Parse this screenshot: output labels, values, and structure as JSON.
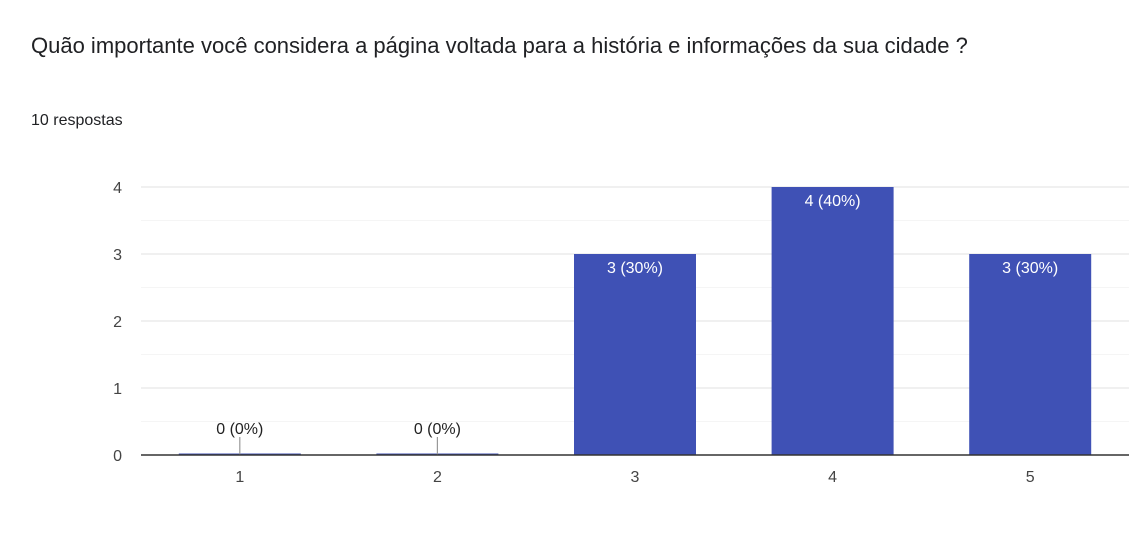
{
  "question": {
    "title": "Quão importante você considera a página voltada para a história e informações da sua cidade ?",
    "responses": "10 respostas"
  },
  "colors": {
    "bar": "#3f51b5",
    "axis": "#333333",
    "grid": "#ebebeb",
    "minor_grid": "#f5f5f5",
    "label_inside": "#ffffff",
    "label_outside": "#222222"
  },
  "chart_data": {
    "type": "bar",
    "categories": [
      "1",
      "2",
      "3",
      "4",
      "5"
    ],
    "values": [
      0,
      0,
      3,
      4,
      3
    ],
    "data_labels": [
      "0 (0%)",
      "0 (0%)",
      "3 (30%)",
      "4 (40%)",
      "3 (30%)"
    ],
    "ylim": [
      0,
      4
    ],
    "yticks": [
      0,
      1,
      2,
      3,
      4
    ],
    "xlabel": "",
    "ylabel": "",
    "grid": true,
    "legend": "none"
  }
}
